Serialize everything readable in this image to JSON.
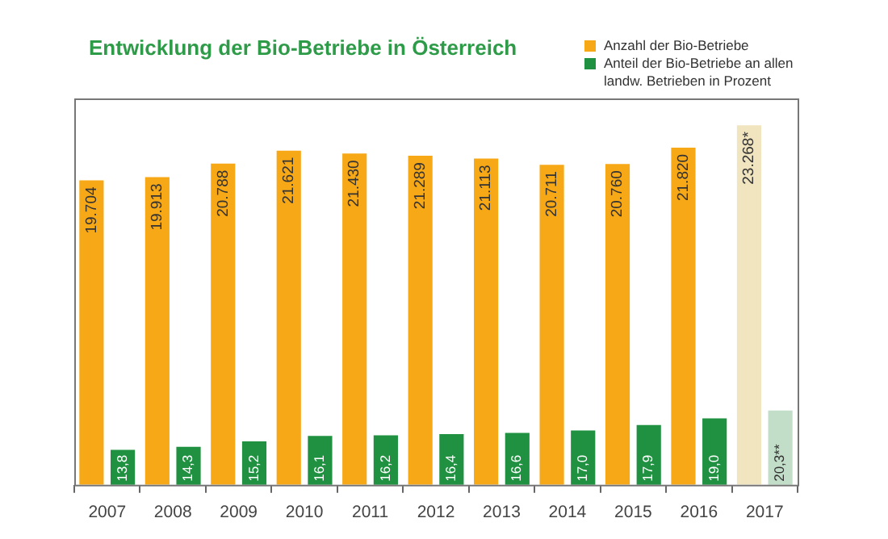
{
  "chart_data": {
    "type": "bar",
    "title": "Entwicklung der Bio-Betriebe in Österreich",
    "categories": [
      "2007",
      "2008",
      "2009",
      "2010",
      "2011",
      "2012",
      "2013",
      "2014",
      "2015",
      "2016",
      "2017"
    ],
    "series": [
      {
        "name": "Anzahl der Bio-Betriebe",
        "color": "#f7a817",
        "colors": [
          "#f7a817",
          "#f7a817",
          "#f7a817",
          "#f7a817",
          "#f7a817",
          "#f7a817",
          "#f7a817",
          "#f7a817",
          "#f7a817",
          "#f7a817",
          "#f1e5c0"
        ],
        "values": [
          19704,
          19913,
          20788,
          21621,
          21430,
          21289,
          21113,
          20711,
          20760,
          21820,
          23268
        ],
        "value_labels": [
          "19.704",
          "19.913",
          "20.788",
          "21.621",
          "21.430",
          "21.289",
          "21.113",
          "20.711",
          "20.760",
          "21.820",
          "23.268*"
        ]
      },
      {
        "name": "Anteil der Bio-Betriebe an allen landw. Betrieben in Prozent",
        "color": "#1f9141",
        "colors": [
          "#1f9141",
          "#1f9141",
          "#1f9141",
          "#1f9141",
          "#1f9141",
          "#1f9141",
          "#1f9141",
          "#1f9141",
          "#1f9141",
          "#1f9141",
          "#c2ddc8"
        ],
        "axis": "y2",
        "values": [
          13.8,
          14.3,
          15.2,
          16.1,
          16.2,
          16.4,
          16.6,
          17.0,
          17.9,
          19.0,
          20.3
        ],
        "value_labels": [
          "13,8",
          "14,3",
          "15,2",
          "16,1",
          "16,2",
          "16,4",
          "16,6",
          "17,0",
          "17,9",
          "19,0",
          "20,3**"
        ]
      }
    ],
    "ylim": [
      0,
      25000
    ],
    "y2lim": [
      8,
      72
    ],
    "legend": "top right",
    "grid": false
  }
}
